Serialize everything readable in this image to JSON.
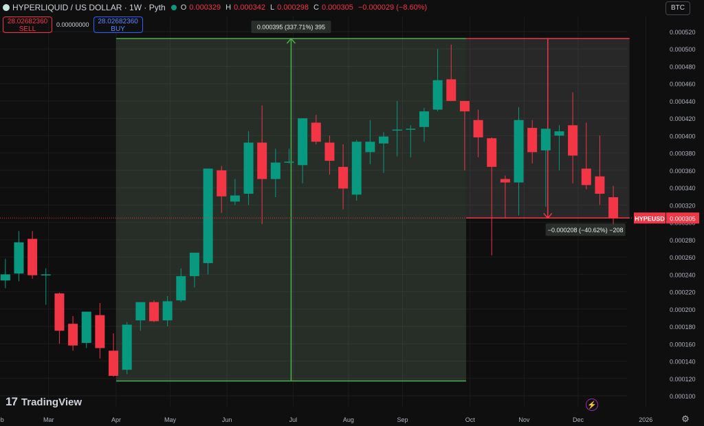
{
  "header": {
    "title": "HYPERLIQUID / US DOLLAR · 1W · Pyth",
    "ohlc": [
      {
        "label": "O",
        "value": "0.000329"
      },
      {
        "label": "H",
        "value": "0.000342"
      },
      {
        "label": "L",
        "value": "0.000298"
      },
      {
        "label": "C",
        "value": "0.000305"
      }
    ],
    "change": "−0.000029 (−8.60%)"
  },
  "trade": {
    "sell_price": "28.02682360",
    "sell_label": "SELL",
    "spread": "0.00000000",
    "buy_price": "28.02682360",
    "buy_label": "BUY"
  },
  "currency": {
    "selected": "BTC"
  },
  "branding": {
    "logo": "17",
    "name": "TradingView"
  },
  "icons": {
    "settings": "gear-icon",
    "lightning": "lightning-icon"
  },
  "colors": {
    "up": "#089981",
    "down": "#f23645",
    "measure_up": "#4caf50",
    "measure_down": "#f23645",
    "background": "#0f0f0f"
  },
  "chart_data": {
    "type": "candlestick",
    "symbol": "HYPEUSD",
    "last_price": "0.000305",
    "ylim": [
      0.0001,
      0.000525
    ],
    "y_ticks": [
      "0.000520",
      "0.000500",
      "0.000480",
      "0.000460",
      "0.000440",
      "0.000420",
      "0.000400",
      "0.000380",
      "0.000360",
      "0.000340",
      "0.000320",
      "0.000300",
      "0.000280",
      "0.000260",
      "0.000240",
      "0.000220",
      "0.000200",
      "0.000180",
      "0.000160",
      "0.000140",
      "0.000120",
      "0.000100"
    ],
    "x_labels": [
      {
        "label": "Feb",
        "week": 0
      },
      {
        "label": "Mar",
        "week": 3.7
      },
      {
        "label": "Apr",
        "week": 8.7
      },
      {
        "label": "May",
        "week": 12.7
      },
      {
        "label": "Jun",
        "week": 16.9
      },
      {
        "label": "Jul",
        "week": 21.8
      },
      {
        "label": "Aug",
        "week": 25.9
      },
      {
        "label": "Sep",
        "week": 29.9
      },
      {
        "label": "Oct",
        "week": 34.9
      },
      {
        "label": "Nov",
        "week": 38.9
      },
      {
        "label": "Dec",
        "week": 42.9
      },
      {
        "label": "2026",
        "week": 47.9
      }
    ],
    "candles": [
      {
        "o": 0.000233,
        "h": 0.000258,
        "l": 0.000224,
        "c": 0.00024
      },
      {
        "o": 0.000241,
        "h": 0.00029,
        "l": 0.000232,
        "c": 0.000277
      },
      {
        "o": 0.000281,
        "h": 0.00029,
        "l": 0.000235,
        "c": 0.000239
      },
      {
        "o": 0.00024,
        "h": 0.000247,
        "l": 0.000205,
        "c": 0.00024
      },
      {
        "o": 0.000218,
        "h": 0.000219,
        "l": 0.00016,
        "c": 0.000175
      },
      {
        "o": 0.000183,
        "h": 0.000192,
        "l": 0.000152,
        "c": 0.000158
      },
      {
        "o": 0.000161,
        "h": 0.000197,
        "l": 0.000155,
        "c": 0.000197
      },
      {
        "o": 0.000193,
        "h": 0.000207,
        "l": 0.000143,
        "c": 0.000155
      },
      {
        "o": 0.000152,
        "h": 0.000172,
        "l": 0.000122,
        "c": 0.000123
      },
      {
        "o": 0.00013,
        "h": 0.000185,
        "l": 0.000125,
        "c": 0.000182
      },
      {
        "o": 0.000187,
        "h": 0.000205,
        "l": 0.000175,
        "c": 0.000208
      },
      {
        "o": 0.000208,
        "h": 0.00021,
        "l": 0.000185,
        "c": 0.000186
      },
      {
        "o": 0.000187,
        "h": 0.000215,
        "l": 0.00018,
        "c": 0.000209
      },
      {
        "o": 0.00021,
        "h": 0.000247,
        "l": 0.000208,
        "c": 0.000238
      },
      {
        "o": 0.000238,
        "h": 0.000265,
        "l": 0.000225,
        "c": 0.000265
      },
      {
        "o": 0.000253,
        "h": 0.000362,
        "l": 0.00024,
        "c": 0.000362
      },
      {
        "o": 0.00036,
        "h": 0.000365,
        "l": 0.000311,
        "c": 0.00033
      },
      {
        "o": 0.000324,
        "h": 0.00035,
        "l": 0.00032,
        "c": 0.000331
      },
      {
        "o": 0.000333,
        "h": 0.000405,
        "l": 0.00032,
        "c": 0.000392
      },
      {
        "o": 0.000392,
        "h": 0.000435,
        "l": 0.000298,
        "c": 0.00035
      },
      {
        "o": 0.00035,
        "h": 0.000385,
        "l": 0.000329,
        "c": 0.000369
      },
      {
        "o": 0.000369,
        "h": 0.000385,
        "l": 0.000368,
        "c": 0.00037
      },
      {
        "o": 0.000366,
        "h": 0.00042,
        "l": 0.000345,
        "c": 0.00042
      },
      {
        "o": 0.000415,
        "h": 0.000424,
        "l": 0.00039,
        "c": 0.000393
      },
      {
        "o": 0.000392,
        "h": 0.0004,
        "l": 0.000355,
        "c": 0.000371
      },
      {
        "o": 0.000364,
        "h": 0.00039,
        "l": 0.000315,
        "c": 0.000339
      },
      {
        "o": 0.000332,
        "h": 0.000395,
        "l": 0.000325,
        "c": 0.000393
      },
      {
        "o": 0.000381,
        "h": 0.000418,
        "l": 0.000367,
        "c": 0.000393
      },
      {
        "o": 0.000391,
        "h": 0.000404,
        "l": 0.000357,
        "c": 0.000399
      },
      {
        "o": 0.000407,
        "h": 0.00044,
        "l": 0.000376,
        "c": 0.000407
      },
      {
        "o": 0.000407,
        "h": 0.000412,
        "l": 0.000375,
        "c": 0.000408
      },
      {
        "o": 0.00041,
        "h": 0.000432,
        "l": 0.000393,
        "c": 0.000428
      },
      {
        "o": 0.00043,
        "h": 0.0005,
        "l": 0.000428,
        "c": 0.000464
      },
      {
        "o": 0.000465,
        "h": 0.000505,
        "l": 0.00044,
        "c": 0.00044
      },
      {
        "o": 0.00044,
        "h": 0.00044,
        "l": 0.00036,
        "c": 0.000428
      },
      {
        "o": 0.000418,
        "h": 0.00043,
        "l": 0.000375,
        "c": 0.000398
      },
      {
        "o": 0.000397,
        "h": 0.000398,
        "l": 0.000262,
        "c": 0.000364
      },
      {
        "o": 0.00035,
        "h": 0.000354,
        "l": 0.000305,
        "c": 0.000346
      },
      {
        "o": 0.000346,
        "h": 0.000433,
        "l": 0.000308,
        "c": 0.000418
      },
      {
        "o": 0.000409,
        "h": 0.000418,
        "l": 0.000368,
        "c": 0.000381
      },
      {
        "o": 0.000383,
        "h": 0.000408,
        "l": 0.000318,
        "c": 0.000408
      },
      {
        "o": 0.0004,
        "h": 0.000412,
        "l": 0.00036,
        "c": 0.000405
      },
      {
        "o": 0.000412,
        "h": 0.00045,
        "l": 0.000345,
        "c": 0.000377
      },
      {
        "o": 0.000362,
        "h": 0.000415,
        "l": 0.000338,
        "c": 0.000343
      },
      {
        "o": 0.000353,
        "h": 0.0004,
        "l": 0.00032,
        "c": 0.000333
      },
      {
        "o": 0.000329,
        "h": 0.000342,
        "l": 0.000298,
        "c": 0.000305
      }
    ],
    "measure_up": {
      "from_week": 8.7,
      "to_week": 34.6,
      "p1": 0.000117,
      "p2": 0.000512,
      "label": "0.000395 (337.71%) 395"
    },
    "measure_down": {
      "from_week": 34.6,
      "to_week": 46.7,
      "p1": 0.000512,
      "p2": 0.000305,
      "label": "−0.000208 (−40.62%) −208"
    }
  }
}
